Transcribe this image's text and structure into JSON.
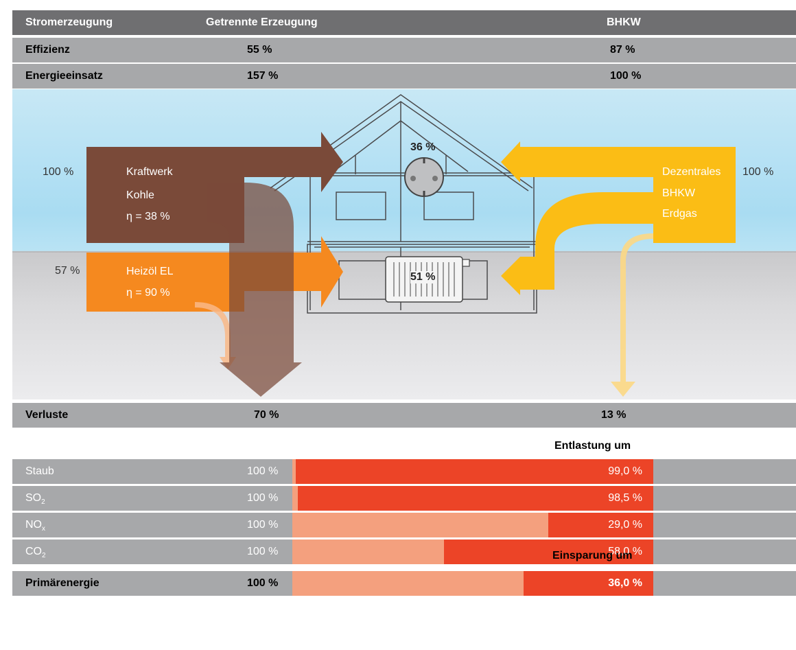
{
  "header": {
    "col1": "Stromerzeugung",
    "col2": "Getrennte Erzeugung",
    "col3": "BHKW"
  },
  "efficiency": {
    "label": "Effizienz",
    "separate": "55 %",
    "chp": "87 %"
  },
  "energy_input": {
    "label": "Energieeinsatz",
    "separate": "157 %",
    "chp": "100 %"
  },
  "diagram": {
    "coal_percent": "100 %",
    "coal_label": [
      "Kraftwerk",
      "Kohle",
      "η = 38 %"
    ],
    "oil_percent": "57 %",
    "oil_label": [
      "Heizöl EL",
      "η = 90 %"
    ],
    "chp_percent": "100 %",
    "chp_label": [
      "Dezentrales",
      "BHKW",
      "Erdgas"
    ],
    "electricity_share": "36 %",
    "heat_share": "51 %"
  },
  "losses": {
    "label": "Verluste",
    "separate": "70 %",
    "chp": "13 %"
  },
  "relief_heading": "Entlastung um",
  "emissions": [
    {
      "name": "Staub",
      "sub": "",
      "baseline": "100 %",
      "reduction": "99,0 %",
      "fraction": 0.99
    },
    {
      "name": "SO",
      "sub": "2",
      "baseline": "100 %",
      "reduction": "98,5 %",
      "fraction": 0.985
    },
    {
      "name": "NO",
      "sub": "x",
      "baseline": "100 %",
      "reduction": "29,0 %",
      "fraction": 0.29
    },
    {
      "name": "CO",
      "sub": "2",
      "baseline": "100 %",
      "reduction": "58,0 %",
      "fraction": 0.58
    }
  ],
  "saving_heading": "Einsparung um",
  "primary_energy": {
    "label": "Primärenergie",
    "baseline": "100 %",
    "saving": "36,0 %",
    "fraction": 0.36
  },
  "colors": {
    "coal": "#7a4a39",
    "oil": "#f5891f",
    "chp": "#fbbd15",
    "reduction": "#ec4427",
    "remaining": "#f4a07e"
  }
}
